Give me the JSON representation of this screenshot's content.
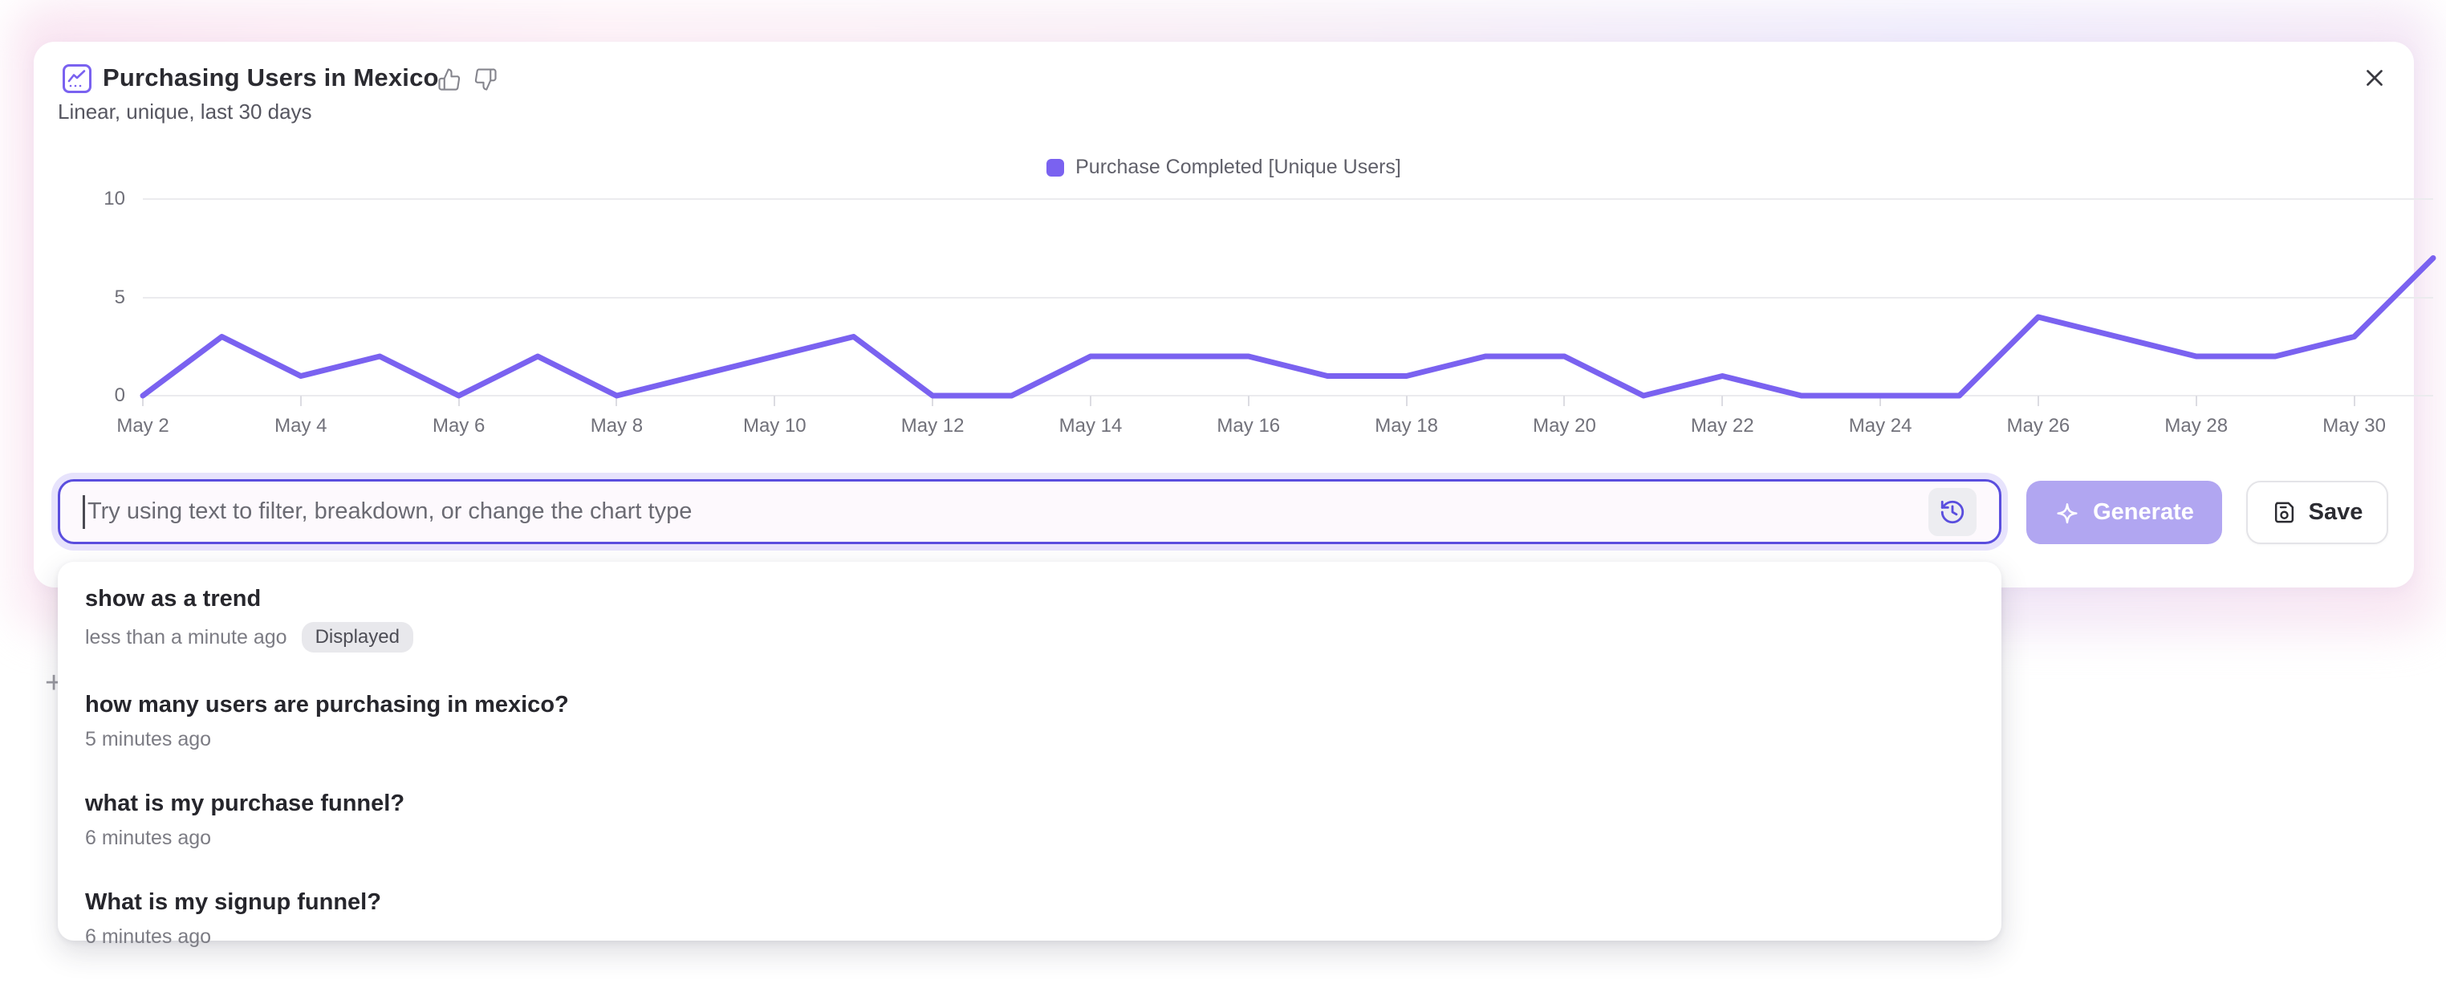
{
  "card": {
    "title": "Purchasing Users in Mexico",
    "subtitle": "Linear, unique, last 30 days"
  },
  "legend": {
    "label": "Purchase Completed [Unique Users]",
    "color": "#7a62f0"
  },
  "chart_data": {
    "type": "line",
    "title": "Purchasing Users in Mexico",
    "x": [
      "May 2",
      "May 3",
      "May 4",
      "May 5",
      "May 6",
      "May 7",
      "May 8",
      "May 9",
      "May 10",
      "May 11",
      "May 12",
      "May 13",
      "May 14",
      "May 15",
      "May 16",
      "May 17",
      "May 18",
      "May 19",
      "May 20",
      "May 21",
      "May 22",
      "May 23",
      "May 24",
      "May 25",
      "May 26",
      "May 27",
      "May 28",
      "May 29",
      "May 30",
      "May 31"
    ],
    "x_tick_labels": [
      "May 2",
      "May 4",
      "May 6",
      "May 8",
      "May 10",
      "May 12",
      "May 14",
      "May 16",
      "May 18",
      "May 20",
      "May 22",
      "May 24",
      "May 26",
      "May 28",
      "May 30"
    ],
    "series": [
      {
        "name": "Purchase Completed [Unique Users]",
        "color": "#7a62f0",
        "values": [
          0,
          3,
          1,
          2,
          0,
          2,
          0,
          1,
          2,
          3,
          0,
          0,
          2,
          2,
          2,
          1,
          1,
          2,
          2,
          0,
          1,
          0,
          0,
          0,
          4,
          3,
          2,
          2,
          3,
          7
        ]
      }
    ],
    "ylim": [
      0,
      10
    ],
    "yticks": [
      0,
      5,
      10
    ],
    "grid": true,
    "legend_position": "top-center"
  },
  "prompt": {
    "placeholder": "Try using text to filter, breakdown, or change the chart type"
  },
  "buttons": {
    "generate": "Generate",
    "save": "Save"
  },
  "history": {
    "items": [
      {
        "query": "show as a trend",
        "time": "less than a minute ago",
        "badge": "Displayed"
      },
      {
        "query": "how many users are purchasing in mexico?",
        "time": "5 minutes ago",
        "badge": ""
      },
      {
        "query": "what is my purchase funnel?",
        "time": "6 minutes ago",
        "badge": ""
      },
      {
        "query": "What is my signup funnel?",
        "time": "6 minutes ago",
        "badge": ""
      }
    ]
  },
  "misc": {
    "stray_plus": "+"
  },
  "colors": {
    "accent_border": "#5a4ede",
    "line": "#7a62f0",
    "generate_bg": "#b1a6f1",
    "glow_pink": "#f5d3e8",
    "glow_lavender": "#e2dcf9",
    "badge_bg": "#e8e8ec"
  }
}
